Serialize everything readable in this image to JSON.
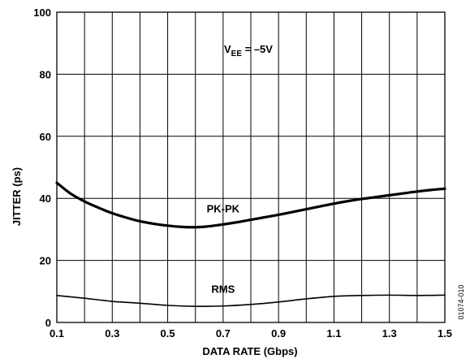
{
  "chart_data": {
    "type": "line",
    "xlabel": "DATA RATE (Gbps)",
    "ylabel": "JITTER (ps)",
    "xlim": [
      0.1,
      1.5
    ],
    "ylim": [
      0,
      100
    ],
    "x_ticks": [
      "0.1",
      "0.3",
      "0.5",
      "0.7",
      "0.9",
      "1.1",
      "1.3",
      "1.5"
    ],
    "y_ticks": [
      "0",
      "20",
      "40",
      "60",
      "80",
      "100"
    ],
    "x_grid_step": 0.1,
    "y_grid_step": 20,
    "grid": true,
    "annotation": {
      "prefix": "V",
      "subscript": "EE",
      "suffix": " = –5V"
    },
    "figure_id": "01074-010",
    "series": [
      {
        "name": "PK-PK",
        "line_weight": "heavy",
        "x": [
          0.1,
          0.15,
          0.2,
          0.25,
          0.3,
          0.35,
          0.4,
          0.45,
          0.5,
          0.55,
          0.6,
          0.65,
          0.7,
          0.75,
          0.8,
          0.85,
          0.9,
          0.95,
          1.0,
          1.05,
          1.1,
          1.15,
          1.2,
          1.25,
          1.3,
          1.35,
          1.4,
          1.45,
          1.5
        ],
        "values": [
          45,
          41.5,
          39,
          37,
          35.2,
          33.8,
          32.6,
          31.8,
          31.2,
          30.8,
          30.7,
          31,
          31.6,
          32.3,
          33.1,
          33.9,
          34.7,
          35.6,
          36.5,
          37.4,
          38.3,
          39.1,
          39.8,
          40.4,
          41.0,
          41.6,
          42.2,
          42.7,
          43.1
        ]
      },
      {
        "name": "RMS",
        "line_weight": "thin",
        "x": [
          0.1,
          0.2,
          0.3,
          0.4,
          0.5,
          0.6,
          0.7,
          0.8,
          0.9,
          1.0,
          1.1,
          1.2,
          1.3,
          1.4,
          1.5
        ],
        "values": [
          8.7,
          7.8,
          6.8,
          6.2,
          5.5,
          5.2,
          5.3,
          5.8,
          6.6,
          7.6,
          8.4,
          8.7,
          8.8,
          8.7,
          8.8
        ]
      }
    ],
    "series_label_positions": [
      {
        "series": "PK-PK",
        "x": 0.7,
        "y": 35.5
      },
      {
        "series": "RMS",
        "x": 0.7,
        "y": 9.5
      }
    ]
  }
}
